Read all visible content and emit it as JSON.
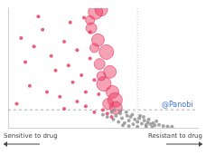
{
  "chart_data": {
    "type": "bubble",
    "xlim": [
      -1.5,
      0.7
    ],
    "ylim": [
      0,
      10
    ],
    "tick_labels": false,
    "grid": false,
    "hline": 1.5,
    "vline": 0,
    "x_label_left": "Sensitive to drug",
    "x_label_right": "Resistant to drug",
    "annotations": [
      {
        "text": "@Panobi",
        "x": 0.28,
        "y": 1.5,
        "color": "#3b6fd9"
      }
    ],
    "series": [
      {
        "color": "#8c8c8c",
        "size": 2,
        "x": [
          -0.4,
          -0.35,
          -0.3,
          -0.28,
          -0.25,
          -0.22,
          -0.2,
          -0.18,
          -0.15,
          -0.12,
          -0.1,
          -0.08,
          -0.05,
          -0.03,
          0,
          0.02,
          0.05,
          0.08,
          0.1,
          0.12,
          0.15,
          0.18,
          0.2,
          0.25,
          0.3,
          0.35,
          0.4,
          -0.27,
          -0.2,
          -0.13,
          -0.06,
          0.03,
          0.07,
          0.13,
          0.22,
          -0.17,
          -0.1,
          0.0,
          0.1,
          0.17
        ],
        "y": [
          1.1,
          0.9,
          1.3,
          0.7,
          1.0,
          0.5,
          1.2,
          0.8,
          0.4,
          1.0,
          0.6,
          0.9,
          0.3,
          0.7,
          0.5,
          0.8,
          0.35,
          0.6,
          0.25,
          0.45,
          0.3,
          0.4,
          0.2,
          0.25,
          0.15,
          0.12,
          0.1,
          1.5,
          1.4,
          1.3,
          1.1,
          1.0,
          0.9,
          0.7,
          0.55,
          0.2,
          0.15,
          0.1,
          0.1,
          0.05
        ]
      },
      {
        "color": "#e8315a",
        "size": 2,
        "x": [
          -1.35,
          -1.2,
          -1.3,
          -1.1,
          -1.0,
          -0.95,
          -1.25,
          -1.4,
          -0.85,
          -0.8,
          -0.75,
          -0.9,
          -0.7,
          -0.65,
          -0.6,
          -0.7,
          -0.55,
          -0.5,
          -0.45,
          -0.6,
          -0.4,
          -0.35,
          -1.05,
          -0.85,
          -0.5,
          -0.3,
          -0.55,
          -0.62,
          -1.15,
          -0.78
        ],
        "y": [
          7.5,
          6.8,
          5.5,
          8.2,
          6.0,
          4.8,
          3.5,
          2.0,
          7.2,
          5.2,
          3.8,
          2.6,
          6.5,
          4.4,
          3.0,
          2.2,
          5.8,
          4.0,
          2.8,
          1.8,
          1.5,
          1.2,
          3.0,
          1.6,
          1.3,
          0.9,
          8.0,
          9.2,
          9.3,
          8.8
        ]
      },
      {
        "color": "#e8315a",
        "x": [
          -0.487,
          -0.42,
          -0.535,
          -0.458,
          -0.36,
          -0.44,
          -0.32,
          -0.39,
          -0.29,
          -0.26,
          -0.34,
          -0.25,
          -0.42,
          -0.5,
          -0.55
        ],
        "y": [
          9.67,
          9.87,
          8.33,
          7.33,
          6.33,
          5.33,
          4.67,
          3.67,
          3.0,
          2.33,
          2.0,
          1.67,
          4.33,
          6.67,
          9.0
        ],
        "sizes": [
          8,
          7,
          6,
          7,
          8,
          6,
          7,
          8,
          7,
          8,
          6,
          7,
          5,
          5,
          5
        ]
      }
    ]
  }
}
